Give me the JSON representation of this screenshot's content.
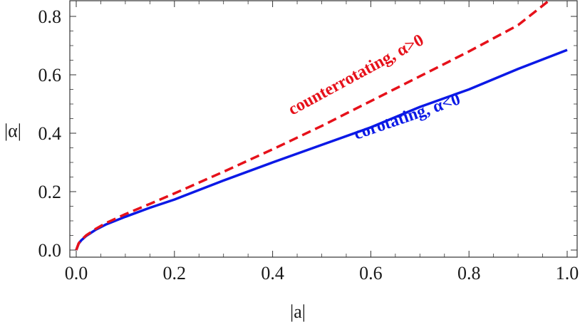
{
  "chart_data": {
    "type": "line",
    "xlabel": "|a|",
    "ylabel": "|α|",
    "xlim": [
      0.0,
      1.0
    ],
    "ylim": [
      0.0,
      0.85
    ],
    "xticks": [
      "0.0",
      "0.2",
      "0.4",
      "0.6",
      "0.8",
      "1.0"
    ],
    "yticks": [
      "0.0",
      "0.2",
      "0.4",
      "0.6",
      "0.8"
    ],
    "grid": false,
    "series": [
      {
        "name": "corotating, α<0",
        "color": "#0b19e6",
        "dash": "solid",
        "x": [
          0.0,
          0.005,
          0.01,
          0.02,
          0.04,
          0.06,
          0.1,
          0.15,
          0.2,
          0.3,
          0.4,
          0.5,
          0.6,
          0.7,
          0.8,
          0.9,
          1.0
        ],
        "y": [
          0.0,
          0.022,
          0.033,
          0.048,
          0.07,
          0.087,
          0.114,
          0.145,
          0.173,
          0.238,
          0.3,
          0.36,
          0.42,
          0.49,
          0.55,
          0.62,
          0.685
        ]
      },
      {
        "name": "counterrotating, α>0",
        "color": "#e6111a",
        "dash": "dashed",
        "x": [
          0.0,
          0.005,
          0.01,
          0.02,
          0.04,
          0.06,
          0.1,
          0.15,
          0.2,
          0.3,
          0.4,
          0.5,
          0.6,
          0.7,
          0.8,
          0.9,
          0.96
        ],
        "y": [
          0.0,
          0.023,
          0.034,
          0.05,
          0.073,
          0.092,
          0.123,
          0.158,
          0.194,
          0.268,
          0.345,
          0.425,
          0.51,
          0.595,
          0.68,
          0.77,
          0.85
        ]
      }
    ],
    "annotations": [
      {
        "text": "counterrotating, α>0",
        "color": "#e6111a",
        "series": 1
      },
      {
        "text": "corotating, α<0",
        "color": "#0b19e6",
        "series": 0
      }
    ]
  }
}
